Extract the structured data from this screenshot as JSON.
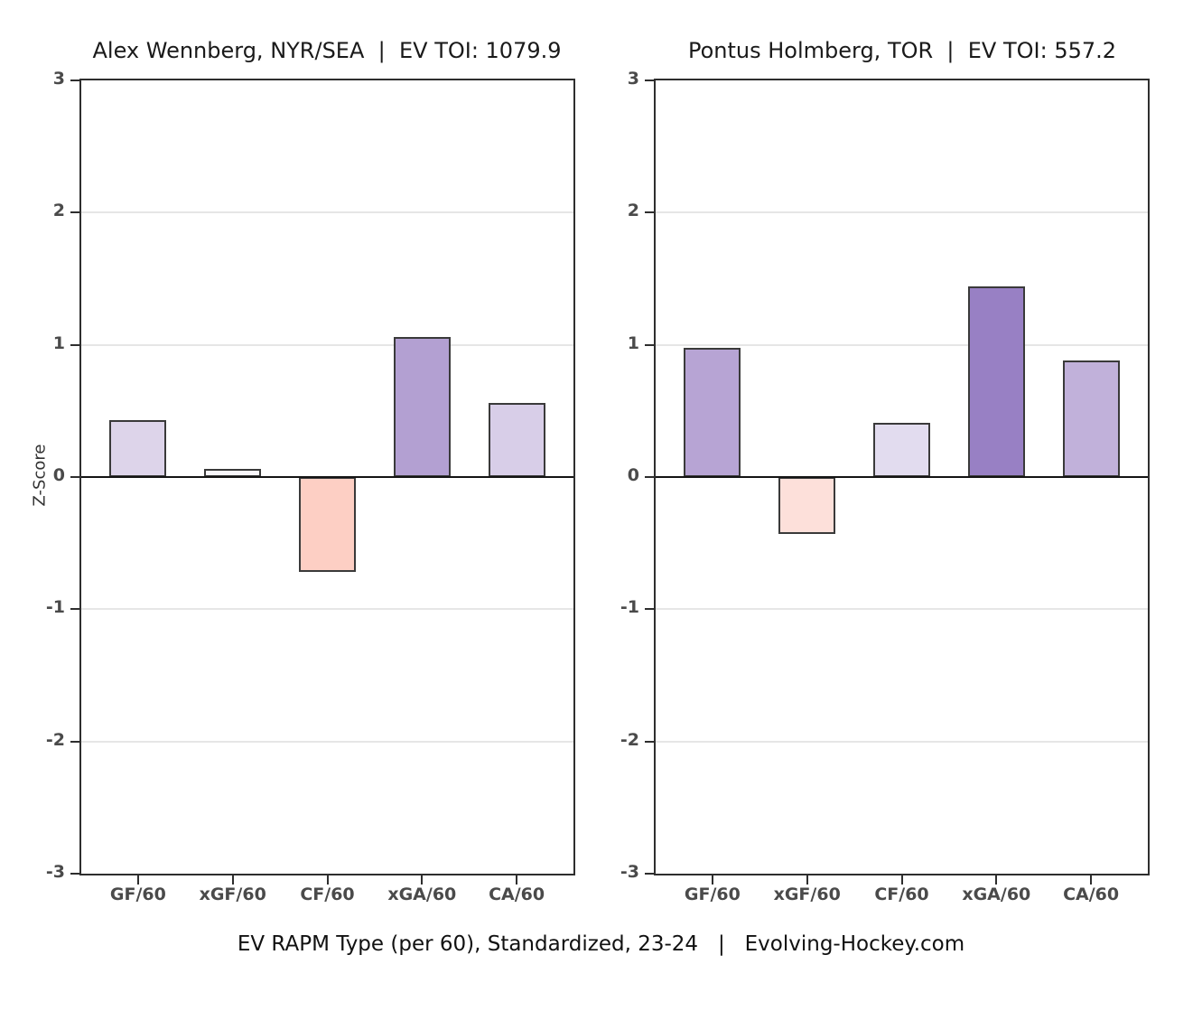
{
  "figure": {
    "caption": "EV RAPM Type (per 60), Standardized, 23-24   |   Evolving-Hockey.com"
  },
  "y_axis": {
    "label": "Z-Score",
    "ticks": [
      3,
      2,
      1,
      0,
      -1,
      -2,
      -3
    ],
    "gridline_values": [
      2,
      1,
      -1,
      -2
    ]
  },
  "chart_data": [
    {
      "type": "bar",
      "title": "Alex Wennberg, NYR/SEA  |  EV TOI: 1079.9",
      "categories": [
        "GF/60",
        "xGF/60",
        "CF/60",
        "xGA/60",
        "CA/60"
      ],
      "values": [
        0.43,
        0.06,
        -0.72,
        1.06,
        0.56
      ],
      "bar_colors": [
        "#ddd4ea",
        "#f9f7fb",
        "#fdcfc4",
        "#b3a0d2",
        "#d8cee8"
      ],
      "xlabel": "",
      "ylabel": "Z-Score",
      "ylim": [
        -3,
        3
      ],
      "grid": true,
      "legend": false
    },
    {
      "type": "bar",
      "title": "Pontus Holmberg, TOR  |  EV TOI: 557.2",
      "categories": [
        "GF/60",
        "xGF/60",
        "CF/60",
        "xGA/60",
        "CA/60"
      ],
      "values": [
        0.98,
        -0.43,
        0.41,
        1.44,
        0.88
      ],
      "bar_colors": [
        "#b7a4d4",
        "#fde0da",
        "#e2dcef",
        "#9880c4",
        "#c1b1da"
      ],
      "xlabel": "",
      "ylabel": "Z-Score",
      "ylim": [
        -3,
        3
      ],
      "grid": true,
      "legend": false
    }
  ],
  "style_colors": {
    "positive_strong": "#9880c4",
    "positive_weak": "#f9f7fb",
    "negative": "#fdcfc4",
    "axis": "#2e2e2e",
    "gridline": "#e6e6e6"
  }
}
